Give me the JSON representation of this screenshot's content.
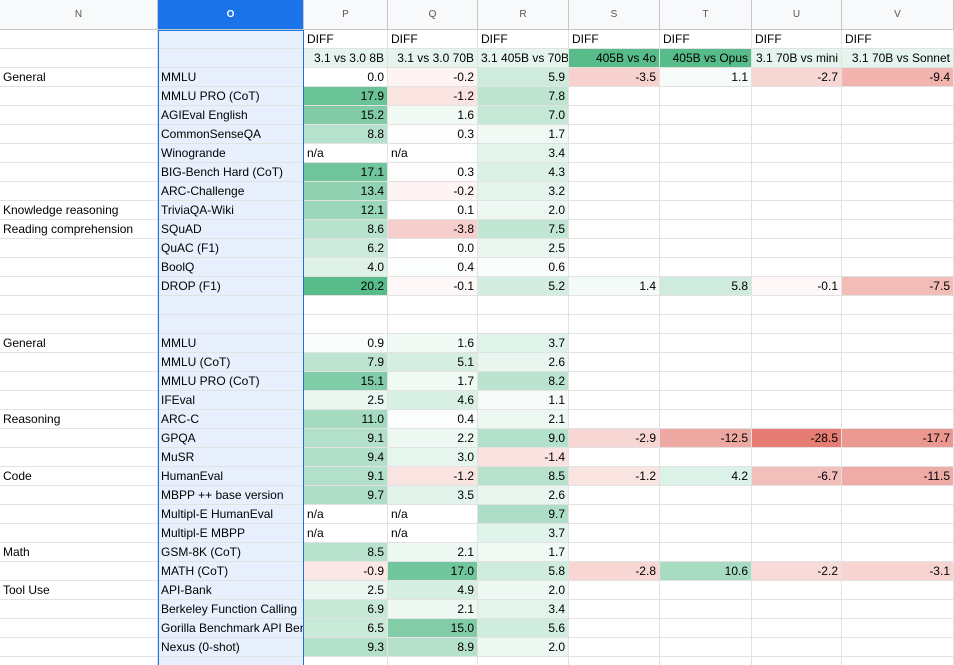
{
  "column_headers": [
    "N",
    "O",
    "P",
    "Q",
    "R",
    "S",
    "T",
    "U",
    "V"
  ],
  "rows": [
    [
      null,
      null,
      "DIFF",
      "DIFF",
      "DIFF",
      "DIFF",
      "DIFF",
      "DIFF",
      "DIFF"
    ],
    [
      null,
      null,
      "3.1 vs 3.0 8B",
      "3.1 vs 3.0 70B",
      "3.1 405B vs 70B",
      "405B vs 4o",
      "405B vs Opus",
      "3.1 70B vs mini",
      "3.1 70B vs Sonnet"
    ],
    [
      "General",
      "MMLU",
      "0.0",
      "-0.2",
      "5.9",
      "-3.5",
      "1.1",
      "-2.7",
      "-9.4"
    ],
    [
      null,
      "MMLU PRO (CoT)",
      "17.9",
      "-1.2",
      "7.8",
      null,
      null,
      null,
      null
    ],
    [
      null,
      "AGIEval English",
      "15.2",
      "1.6",
      "7.0",
      null,
      null,
      null,
      null
    ],
    [
      null,
      "CommonSenseQA",
      "8.8",
      "0.3",
      "1.7",
      null,
      null,
      null,
      null
    ],
    [
      null,
      "Winogrande",
      "n/a",
      "n/a",
      "3.4",
      null,
      null,
      null,
      null
    ],
    [
      null,
      "BIG-Bench Hard (CoT)",
      "17.1",
      "0.3",
      "4.3",
      null,
      null,
      null,
      null
    ],
    [
      null,
      "ARC-Challenge",
      "13.4",
      "-0.2",
      "3.2",
      null,
      null,
      null,
      null
    ],
    [
      "Knowledge reasoning",
      "TriviaQA-Wiki",
      "12.1",
      "0.1",
      "2.0",
      null,
      null,
      null,
      null
    ],
    [
      "Reading comprehension",
      "SQuAD",
      "8.6",
      "-3.8",
      "7.5",
      null,
      null,
      null,
      null
    ],
    [
      null,
      "QuAC (F1)",
      "6.2",
      "0.0",
      "2.5",
      null,
      null,
      null,
      null
    ],
    [
      null,
      "BoolQ",
      "4.0",
      "0.4",
      "0.6",
      null,
      null,
      null,
      null
    ],
    [
      null,
      "DROP (F1)",
      "20.2",
      "-0.1",
      "5.2",
      "1.4",
      "5.8",
      "-0.1",
      "-7.5"
    ],
    [
      null,
      null,
      null,
      null,
      null,
      null,
      null,
      null,
      null
    ],
    [
      null,
      null,
      null,
      null,
      null,
      null,
      null,
      null,
      null
    ],
    [
      "General",
      "MMLU",
      "0.9",
      "1.6",
      "3.7",
      null,
      null,
      null,
      null
    ],
    [
      null,
      "MMLU (CoT)",
      "7.9",
      "5.1",
      "2.6",
      null,
      null,
      null,
      null
    ],
    [
      null,
      "MMLU PRO (CoT)",
      "15.1",
      "1.7",
      "8.2",
      null,
      null,
      null,
      null
    ],
    [
      null,
      "IFEval",
      "2.5",
      "4.6",
      "1.1",
      null,
      null,
      null,
      null
    ],
    [
      "Reasoning",
      "ARC-C",
      "11.0",
      "0.4",
      "2.1",
      null,
      null,
      null,
      null
    ],
    [
      null,
      "GPQA",
      "9.1",
      "2.2",
      "9.0",
      "-2.9",
      "-12.5",
      "-28.5",
      "-17.7"
    ],
    [
      null,
      "MuSR",
      "9.4",
      "3.0",
      "-1.4",
      null,
      null,
      null,
      null
    ],
    [
      "Code",
      "HumanEval",
      "9.1",
      "-1.2",
      "8.5",
      "-1.2",
      "4.2",
      "-6.7",
      "-11.5"
    ],
    [
      null,
      "MBPP ++ base version",
      "9.7",
      "3.5",
      "2.6",
      null,
      null,
      null,
      null
    ],
    [
      null,
      "Multipl-E HumanEval",
      "n/a",
      "n/a",
      "9.7",
      null,
      null,
      null,
      null
    ],
    [
      null,
      "Multipl-E MBPP",
      "n/a",
      "n/a",
      "3.7",
      null,
      null,
      null,
      null
    ],
    [
      "Math",
      "GSM-8K (CoT)",
      "8.5",
      "2.1",
      "1.7",
      null,
      null,
      null,
      null
    ],
    [
      null,
      "MATH (CoT)",
      "-0.9",
      "17.0",
      "5.8",
      "-2.8",
      "10.6",
      "-2.2",
      "-3.1"
    ],
    [
      "Tool Use",
      "API-Bank",
      "2.5",
      "4.9",
      "2.0",
      null,
      null,
      null,
      null
    ],
    [
      null,
      "Berkeley Function Calling",
      "6.9",
      "2.1",
      "3.4",
      null,
      null,
      null,
      null
    ],
    [
      null,
      "Gorilla Benchmark API Bench",
      "6.5",
      "15.0",
      "5.6",
      null,
      null,
      null,
      null
    ],
    [
      null,
      "Nexus (0-shot)",
      "9.3",
      "8.9",
      "2.0",
      null,
      null,
      null,
      null
    ]
  ]
}
